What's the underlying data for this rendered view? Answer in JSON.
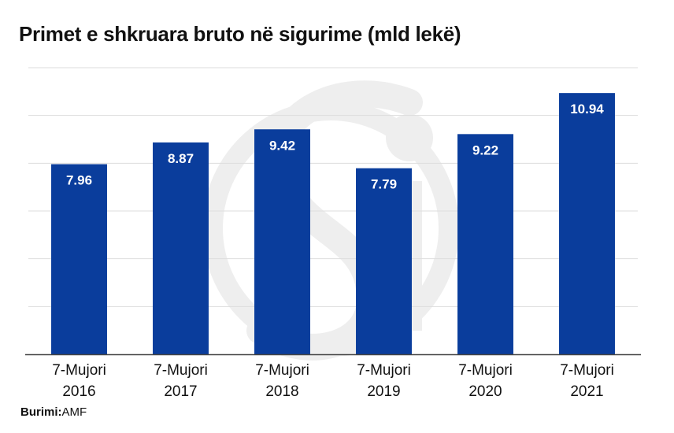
{
  "title": "Primet e shkruara bruto në sigurime (mld lekë)",
  "source_label": "Burimi:",
  "source_value": "AMF",
  "colors": {
    "bar": "#0A3D9C",
    "grid": "#DDDDDD",
    "axis": "#444444",
    "watermark": "#EEEEEE"
  },
  "watermark_icon": "si-logo-watermark",
  "chart_data": {
    "type": "bar",
    "title": "Primet e shkruara bruto në sigurime (mld lekë)",
    "categories": [
      [
        "7-Mujori",
        "2016"
      ],
      [
        "7-Mujori",
        "2017"
      ],
      [
        "7-Mujori",
        "2018"
      ],
      [
        "7-Mujori",
        "2019"
      ],
      [
        "7-Mujori",
        "2020"
      ],
      [
        "7-Mujori",
        "2021"
      ]
    ],
    "values": [
      7.96,
      8.87,
      9.42,
      7.79,
      9.22,
      10.94
    ],
    "value_labels": [
      "7.96",
      "8.87",
      "9.42",
      "7.79",
      "9.22",
      "10.94"
    ],
    "ylim": [
      0,
      12
    ],
    "gridlines": [
      2,
      4,
      6,
      8,
      10,
      12
    ],
    "grid": true,
    "ytick_labels": false,
    "xlabel": "",
    "ylabel": ""
  }
}
